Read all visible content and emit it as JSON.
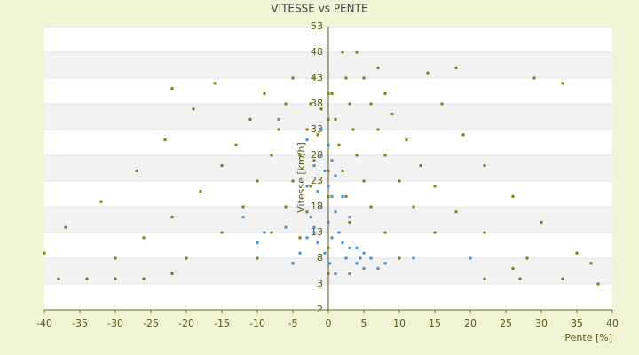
{
  "chart_data": {
    "type": "scatter",
    "title": "VITESSE vs PENTE",
    "xlabel": "Pente [%]",
    "ylabel": "Vitesse [km/h]",
    "xlim": [
      -40,
      40
    ],
    "xticks": [
      -40,
      -35,
      -30,
      -25,
      -20,
      -15,
      -10,
      -5,
      0,
      5,
      10,
      15,
      20,
      25,
      30,
      35,
      40
    ],
    "ylim": [
      -2,
      53
    ],
    "yticks": [
      -2,
      3,
      8,
      13,
      18,
      23,
      28,
      33,
      38,
      43,
      48,
      53
    ],
    "grid": true,
    "series": [
      {
        "color": "#7d7d0a",
        "x": [
          2,
          2.5,
          3,
          3.5,
          4,
          5,
          6,
          8,
          10,
          4,
          5,
          6,
          7,
          8,
          10,
          12,
          15,
          20,
          7,
          8,
          9,
          11,
          13,
          15,
          18,
          22,
          28,
          14,
          16,
          19,
          22,
          26,
          30,
          35,
          0.5,
          1,
          1.5,
          2,
          2.5,
          3,
          4,
          -2,
          -2.5,
          -3,
          -4,
          -5,
          -6,
          -8,
          -10,
          -5,
          -6,
          -7,
          -8,
          -10,
          -12,
          -15,
          -20,
          -9,
          -11,
          -13,
          -15,
          -18,
          -22,
          -26,
          -30,
          -16,
          -19,
          -23,
          -27,
          -32,
          -37,
          -40,
          -1,
          -1.5,
          -2,
          -2.5,
          -3,
          -4,
          -5,
          0,
          0,
          0,
          0,
          0,
          0,
          0,
          0,
          -38,
          -34,
          -30,
          -26,
          -22,
          22,
          27,
          33,
          38,
          29,
          33,
          -22,
          18,
          26,
          37
        ],
        "values": [
          48,
          43,
          38,
          33,
          28,
          23,
          18,
          13,
          8,
          48,
          43,
          38,
          33,
          28,
          23,
          18,
          13,
          8,
          45,
          40,
          36,
          31,
          26,
          22,
          17,
          13,
          8,
          44,
          38,
          32,
          26,
          20,
          15,
          9,
          40,
          35,
          30,
          25,
          20,
          15,
          10,
          43,
          38,
          33,
          28,
          23,
          18,
          13,
          8,
          43,
          38,
          33,
          28,
          23,
          18,
          13,
          8,
          40,
          35,
          30,
          26,
          21,
          16,
          12,
          8,
          42,
          37,
          31,
          25,
          19,
          14,
          9,
          37,
          32,
          27,
          22,
          17,
          12,
          7,
          5,
          10,
          15,
          20,
          25,
          30,
          35,
          40,
          4,
          4,
          4,
          4,
          5,
          4,
          4,
          4,
          3,
          43,
          42,
          41,
          45,
          6,
          7
        ]
      },
      {
        "color": "#3d8fd8",
        "x": [
          -1,
          -0.5,
          0,
          0.5,
          -1,
          1,
          0,
          -2,
          1.5,
          0.5,
          2,
          3,
          4,
          5,
          6,
          4,
          5,
          3,
          -0.5,
          -1.5,
          -2,
          -3,
          -4,
          -5,
          -2.5,
          -1.5,
          -2,
          -3,
          0,
          1,
          2,
          3,
          -6,
          -9,
          -10,
          0.2,
          1,
          7,
          8,
          12,
          20,
          -12,
          -7,
          -1,
          2.5,
          4.5,
          -3,
          0.5
        ],
        "values": [
          28,
          25,
          22,
          20,
          18,
          17,
          15,
          14,
          13,
          12,
          11,
          10,
          10,
          9,
          8,
          7,
          6,
          5,
          9,
          11,
          13,
          12,
          9,
          7,
          16,
          21,
          26,
          31,
          30,
          24,
          20,
          16,
          14,
          13,
          11,
          7,
          5,
          6,
          7,
          8,
          8,
          16,
          35,
          33,
          8,
          8,
          22,
          27
        ]
      }
    ]
  }
}
